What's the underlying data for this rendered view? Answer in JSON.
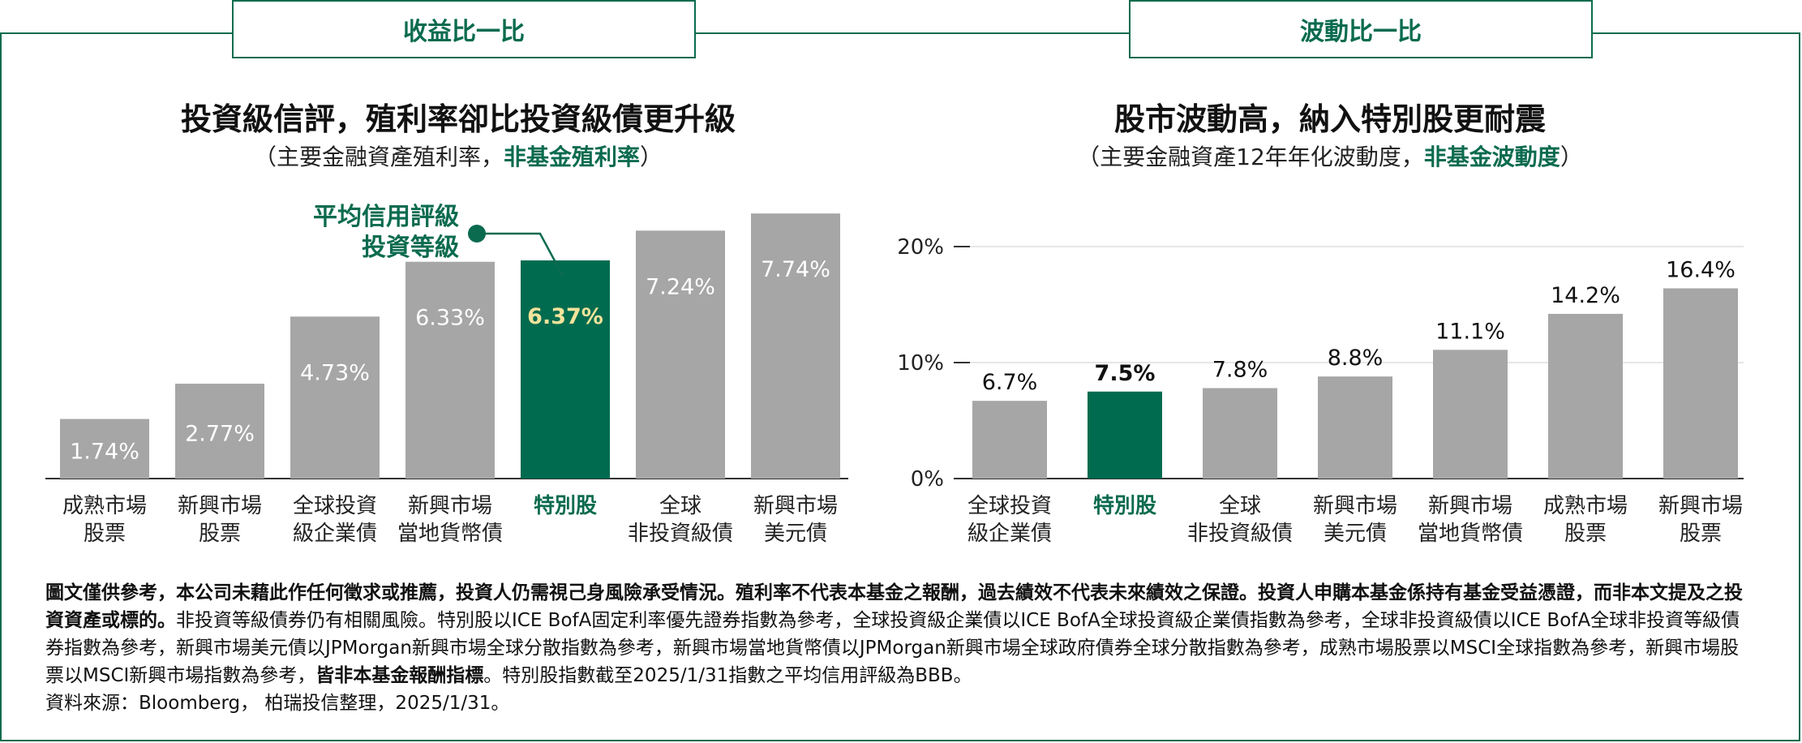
{
  "tabs": {
    "left": "收益比一比",
    "right": "波動比一比"
  },
  "left_chart": {
    "title": "投資級信評，殖利率卻比投資級債更升級",
    "subtitle_pre": "（主要金融資產殖利率，",
    "subtitle_hl": "非基金殖利率",
    "subtitle_post": "）",
    "annotation": [
      "平均信用評級",
      "投資等級"
    ]
  },
  "right_chart": {
    "title": "股市波動高，納入特別股更耐震",
    "subtitle_pre": "（主要金融資產12年年化波動度，",
    "subtitle_hl": "非基金波動度",
    "subtitle_post": "）"
  },
  "colors": {
    "gray": "#a6a6a6",
    "green": "#006b4f",
    "yellow": "#f2e39b",
    "accent": "#0b6b4f"
  },
  "chart_data": [
    {
      "type": "bar",
      "categories": [
        [
          "成熟市場",
          "股票"
        ],
        [
          "新興市場",
          "股票"
        ],
        [
          "全球投資",
          "級企業債"
        ],
        [
          "新興市場",
          "當地貨幣債"
        ],
        [
          "特別股"
        ],
        [
          "全球",
          "非投資級債"
        ],
        [
          "新興市場",
          "美元債"
        ]
      ],
      "values": [
        1.74,
        2.77,
        4.73,
        6.33,
        6.37,
        7.24,
        7.74
      ],
      "labels": [
        "1.74%",
        "2.77%",
        "4.73%",
        "6.33%",
        "6.37%",
        "7.24%",
        "7.74%"
      ],
      "highlight_index": 4,
      "ylim": [
        0,
        9.0
      ]
    },
    {
      "type": "bar",
      "categories": [
        [
          "全球投資",
          "級企業債"
        ],
        [
          "特別股"
        ],
        [
          "全球",
          "非投資級債"
        ],
        [
          "新興市場",
          "美元債"
        ],
        [
          "新興市場",
          "當地貨幣債"
        ],
        [
          "成熟市場",
          "股票"
        ],
        [
          "新興市場",
          "股票"
        ]
      ],
      "values": [
        6.7,
        7.5,
        7.8,
        8.8,
        11.1,
        14.2,
        16.4
      ],
      "labels": [
        "6.7%",
        "7.5%",
        "7.8%",
        "8.8%",
        "11.1%",
        "14.2%",
        "16.4%"
      ],
      "highlight_index": 1,
      "ylim": [
        0,
        20
      ],
      "yticks": [
        0,
        10,
        20
      ],
      "ytick_labels": [
        "0%",
        "10%",
        "20%"
      ],
      "grid": true
    }
  ],
  "notes": {
    "p1_bold": "圖文僅供參考，本公司未藉此作任何徵求或推薦，投資人仍需視己身風險承受情況。殖利率不代表本基金之報酬，過去績效不代表未來績效之保證。投資人申購本基金係持有基金受益憑證，而非本文提及之投資資產或標的。",
    "p1_normal": "非投資等級債券仍有相關風險。特別股以ICE BofA固定利率優先證券指數為參考，全球投資級企業債以ICE BofA全球投資級企業債指數為參考，全球非投資級債以ICE BofA全球非投資等級債券指數為參考，新興市場美元債以JPMorgan新興市場全球分散指數為參考，新興市場當地貨幣債以JPMorgan新興市場全球政府債券全球分散指數為參考，成熟市場股票以MSCI全球指數為參考，新興市場股票以MSCI新興市場指數為參考，",
    "p1_bold2": "皆非本基金報酬指標",
    "p1_tail": "。特別股指數截至2025/1/31指數之平均信用評級為BBB。",
    "source": "資料來源：Bloomberg， 柏瑞投信整理，2025/1/31。"
  }
}
